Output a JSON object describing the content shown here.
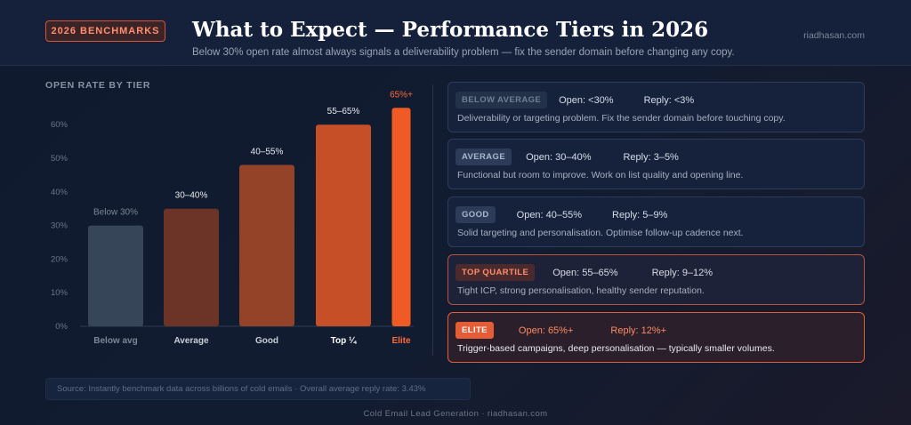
{
  "header": {
    "badge": "2026 BENCHMARKS",
    "title": "What to Expect — Performance Tiers in 2026",
    "subtitle": "Below 30% open rate almost always signals a deliverability problem — fix the sender domain before changing any copy.",
    "site": "riadhasan.com"
  },
  "chart_title": "OPEN RATE BY TIER",
  "chart_data": {
    "type": "bar",
    "categories": [
      "Below avg",
      "Average",
      "Good",
      "Top ¼",
      "Elite"
    ],
    "values": [
      30,
      35,
      48,
      60,
      65
    ],
    "data_labels": [
      "Below 30%",
      "30–40%",
      "40–55%",
      "55–65%",
      "65%+"
    ],
    "yticks": [
      "0%",
      "10%",
      "20%",
      "30%",
      "40%",
      "50%",
      "60%"
    ],
    "ylim": [
      0,
      65
    ],
    "colors": [
      "#374559",
      "#6b3427",
      "#944228",
      "#c74f28",
      "#f05a24"
    ],
    "grid": false,
    "legend": "none"
  },
  "tiers": [
    {
      "label": "BELOW AVERAGE",
      "open": "Open: <30%",
      "reply": "Reply: <3%",
      "desc": "Deliverability or targeting problem. Fix the sender domain before touching copy."
    },
    {
      "label": "AVERAGE",
      "open": "Open: 30–40%",
      "reply": "Reply: 3–5%",
      "desc": "Functional but room to improve. Work on list quality and opening line."
    },
    {
      "label": "GOOD",
      "open": "Open: 40–55%",
      "reply": "Reply: 5–9%",
      "desc": "Solid targeting and personalisation. Optimise follow-up cadence next."
    },
    {
      "label": "TOP QUARTILE",
      "open": "Open: 55–65%",
      "reply": "Reply: 9–12%",
      "desc": "Tight ICP, strong personalisation, healthy sender reputation."
    },
    {
      "label": "ELITE",
      "open": "Open: 65%+",
      "reply": "Reply: 12%+",
      "desc": "Trigger-based campaigns, deep personalisation — typically smaller volumes."
    }
  ],
  "source": "Source: Instantly benchmark data across billions of cold emails · Overall average reply rate: 3.43%",
  "footer": "Cold Email Lead Generation · riadhasan.com"
}
